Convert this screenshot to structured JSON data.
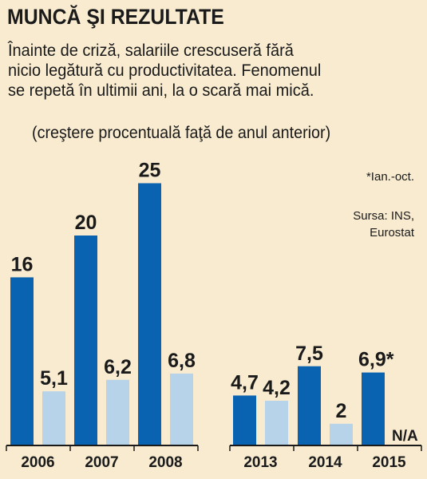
{
  "title": "MUNCĂ ŞI REZULTATE",
  "subtitle_lines": [
    "Înainte de criză, salariile crescuseră fără",
    "nicio legătură cu productivitatea. Fenomenul",
    "se repetă în ultimii ani, la o scară mai mică."
  ],
  "unit": "(creştere procentuală faţă de anul anterior)",
  "footnote": "*Ian.-oct.",
  "source_lines": [
    "Sursa: INS,",
    "Eurostat"
  ],
  "colors": {
    "background": "#f8ebd0",
    "dark_bar": "#0a63b0",
    "light_bar": "#b7d3ea"
  },
  "chart_data": {
    "type": "bar",
    "categories": [
      "2006",
      "2007",
      "2008",
      "2013",
      "2014",
      "2015"
    ],
    "series": [
      {
        "values": [
          16,
          20,
          25,
          4.7,
          7.5,
          6.9
        ],
        "labels": [
          "16",
          "20",
          "25",
          "4,7",
          "7,5",
          "6,9*"
        ],
        "color": "#0a63b0"
      },
      {
        "values": [
          5.1,
          6.2,
          6.8,
          4.2,
          2,
          null
        ],
        "labels": [
          "5,1",
          "6,2",
          "6,8",
          "4,2",
          "2",
          "N/A"
        ],
        "color": "#b7d3ea"
      }
    ],
    "ylim": [
      0,
      25
    ],
    "grid": false,
    "legend": "none"
  }
}
